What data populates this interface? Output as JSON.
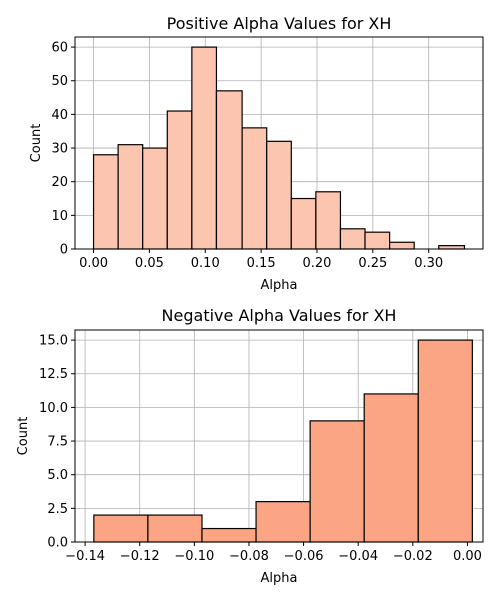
{
  "chart_data": [
    {
      "type": "bar",
      "title": "Positive Alpha Values for XH",
      "xlabel": "Alpha",
      "ylabel": "Count",
      "bins": [
        {
          "x0": 0.0,
          "x1": 0.022,
          "count": 28
        },
        {
          "x0": 0.022,
          "x1": 0.044,
          "count": 31
        },
        {
          "x0": 0.044,
          "x1": 0.066,
          "count": 30
        },
        {
          "x0": 0.066,
          "x1": 0.088,
          "count": 41
        },
        {
          "x0": 0.088,
          "x1": 0.11,
          "count": 60
        },
        {
          "x0": 0.11,
          "x1": 0.133,
          "count": 47
        },
        {
          "x0": 0.133,
          "x1": 0.155,
          "count": 36
        },
        {
          "x0": 0.155,
          "x1": 0.177,
          "count": 32
        },
        {
          "x0": 0.177,
          "x1": 0.199,
          "count": 15
        },
        {
          "x0": 0.199,
          "x1": 0.221,
          "count": 17
        },
        {
          "x0": 0.221,
          "x1": 0.243,
          "count": 6
        },
        {
          "x0": 0.243,
          "x1": 0.265,
          "count": 5
        },
        {
          "x0": 0.265,
          "x1": 0.287,
          "count": 2
        },
        {
          "x0": 0.287,
          "x1": 0.309,
          "count": 0
        },
        {
          "x0": 0.309,
          "x1": 0.332,
          "count": 1
        }
      ],
      "xlim": [
        -0.0166,
        0.3486
      ],
      "ylim": [
        0,
        63
      ],
      "xticks": [
        {
          "value": 0.0,
          "label": "0.00"
        },
        {
          "value": 0.05,
          "label": "0.05"
        },
        {
          "value": 0.1,
          "label": "0.10"
        },
        {
          "value": 0.15,
          "label": "0.15"
        },
        {
          "value": 0.2,
          "label": "0.20"
        },
        {
          "value": 0.25,
          "label": "0.25"
        },
        {
          "value": 0.3,
          "label": "0.30"
        }
      ],
      "yticks": [
        {
          "value": 0,
          "label": "0"
        },
        {
          "value": 10,
          "label": "10"
        },
        {
          "value": 20,
          "label": "20"
        },
        {
          "value": 30,
          "label": "30"
        },
        {
          "value": 40,
          "label": "40"
        },
        {
          "value": 50,
          "label": "50"
        },
        {
          "value": 60,
          "label": "60"
        }
      ],
      "grid": true,
      "bar_color": "#fcc5b0",
      "edge_color": "#000000"
    },
    {
      "type": "bar",
      "title": "Negative Alpha Values for XH",
      "xlabel": "Alpha",
      "ylabel": "Count",
      "bins": [
        {
          "x0": -0.1368,
          "x1": -0.117,
          "count": 2
        },
        {
          "x0": -0.117,
          "x1": -0.0972,
          "count": 2
        },
        {
          "x0": -0.0972,
          "x1": -0.0774,
          "count": 1
        },
        {
          "x0": -0.0774,
          "x1": -0.0576,
          "count": 3
        },
        {
          "x0": -0.0576,
          "x1": -0.0378,
          "count": 9
        },
        {
          "x0": -0.0378,
          "x1": -0.018,
          "count": 11
        },
        {
          "x0": -0.018,
          "x1": 0.0018,
          "count": 15
        }
      ],
      "xlim": [
        -0.1437,
        0.0057
      ],
      "ylim": [
        0,
        15.75
      ],
      "xticks": [
        {
          "value": -0.14,
          "label": "−0.14"
        },
        {
          "value": -0.12,
          "label": "−0.12"
        },
        {
          "value": -0.1,
          "label": "−0.10"
        },
        {
          "value": -0.08,
          "label": "−0.08"
        },
        {
          "value": -0.06,
          "label": "−0.06"
        },
        {
          "value": -0.04,
          "label": "−0.04"
        },
        {
          "value": -0.02,
          "label": "−0.02"
        },
        {
          "value": 0.0,
          "label": "0.00"
        }
      ],
      "yticks": [
        {
          "value": 0,
          "label": "0.0"
        },
        {
          "value": 2.5,
          "label": "2.5"
        },
        {
          "value": 5,
          "label": "5.0"
        },
        {
          "value": 7.5,
          "label": "7.5"
        },
        {
          "value": 10,
          "label": "10.0"
        },
        {
          "value": 12.5,
          "label": "12.5"
        },
        {
          "value": 15,
          "label": "15.0"
        }
      ],
      "grid": true,
      "bar_color": "#fca584",
      "edge_color": "#000000"
    }
  ]
}
